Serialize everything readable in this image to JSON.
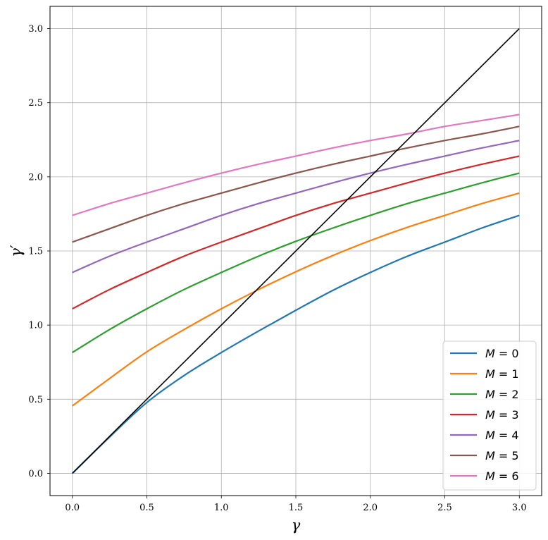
{
  "chart_data": {
    "type": "line",
    "xlabel": "γ",
    "ylabel": "γ′",
    "xlim": [
      -0.15,
      3.15
    ],
    "ylim": [
      -0.15,
      3.15
    ],
    "x_ticks": [
      0.0,
      0.5,
      1.0,
      1.5,
      2.0,
      2.5,
      3.0
    ],
    "y_ticks": [
      0.0,
      0.5,
      1.0,
      1.5,
      2.0,
      2.5,
      3.0
    ],
    "x_tick_labels": [
      "0.0",
      "0.5",
      "1.0",
      "1.5",
      "2.0",
      "2.5",
      "3.0"
    ],
    "y_tick_labels": [
      "0.0",
      "0.5",
      "1.0",
      "1.5",
      "2.0",
      "2.5",
      "3.0"
    ],
    "grid": true,
    "legend_position": "bottom-right",
    "x": [
      0.0,
      0.25,
      0.5,
      0.75,
      1.0,
      1.25,
      1.5,
      1.75,
      2.0,
      2.25,
      2.5,
      2.75,
      3.0
    ],
    "series": [
      {
        "name": "M = 0",
        "label_parts": [
          "M",
          " = 0"
        ],
        "color": "#1f77b4",
        "values": [
          0.0,
          0.245,
          0.478,
          0.66,
          0.815,
          0.96,
          1.1,
          1.235,
          1.355,
          1.465,
          1.56,
          1.655,
          1.74
        ]
      },
      {
        "name": "M = 1",
        "label_parts": [
          "M",
          " = 1"
        ],
        "color": "#ff7f0e",
        "values": [
          0.455,
          0.64,
          0.82,
          0.97,
          1.11,
          1.24,
          1.36,
          1.47,
          1.57,
          1.66,
          1.74,
          1.82,
          1.89
        ]
      },
      {
        "name": "M = 2",
        "label_parts": [
          "M",
          " = 2"
        ],
        "color": "#2ca02c",
        "values": [
          0.815,
          0.97,
          1.11,
          1.24,
          1.355,
          1.465,
          1.565,
          1.655,
          1.74,
          1.82,
          1.89,
          1.96,
          2.025
        ]
      },
      {
        "name": "M = 3",
        "label_parts": [
          "M",
          " = 3"
        ],
        "color": "#d62728",
        "values": [
          1.11,
          1.24,
          1.355,
          1.465,
          1.56,
          1.65,
          1.74,
          1.82,
          1.89,
          1.96,
          2.025,
          2.085,
          2.14
        ]
      },
      {
        "name": "M = 4",
        "label_parts": [
          "M",
          " = 4"
        ],
        "color": "#9467bd",
        "values": [
          1.355,
          1.465,
          1.56,
          1.65,
          1.74,
          1.82,
          1.89,
          1.96,
          2.025,
          2.085,
          2.14,
          2.195,
          2.245
        ]
      },
      {
        "name": "M = 5",
        "label_parts": [
          "M",
          " = 5"
        ],
        "color": "#8c564b",
        "values": [
          1.56,
          1.65,
          1.74,
          1.82,
          1.89,
          1.96,
          2.025,
          2.085,
          2.14,
          2.195,
          2.245,
          2.29,
          2.34
        ]
      },
      {
        "name": "M = 6",
        "label_parts": [
          "M",
          " = 6"
        ],
        "color": "#e377c2",
        "values": [
          1.74,
          1.82,
          1.89,
          1.96,
          2.025,
          2.085,
          2.14,
          2.195,
          2.245,
          2.29,
          2.34,
          2.38,
          2.42
        ]
      }
    ],
    "reference_line": {
      "color": "#000000",
      "x": [
        0.0,
        3.0
      ],
      "values": [
        0.0,
        3.0
      ]
    }
  }
}
